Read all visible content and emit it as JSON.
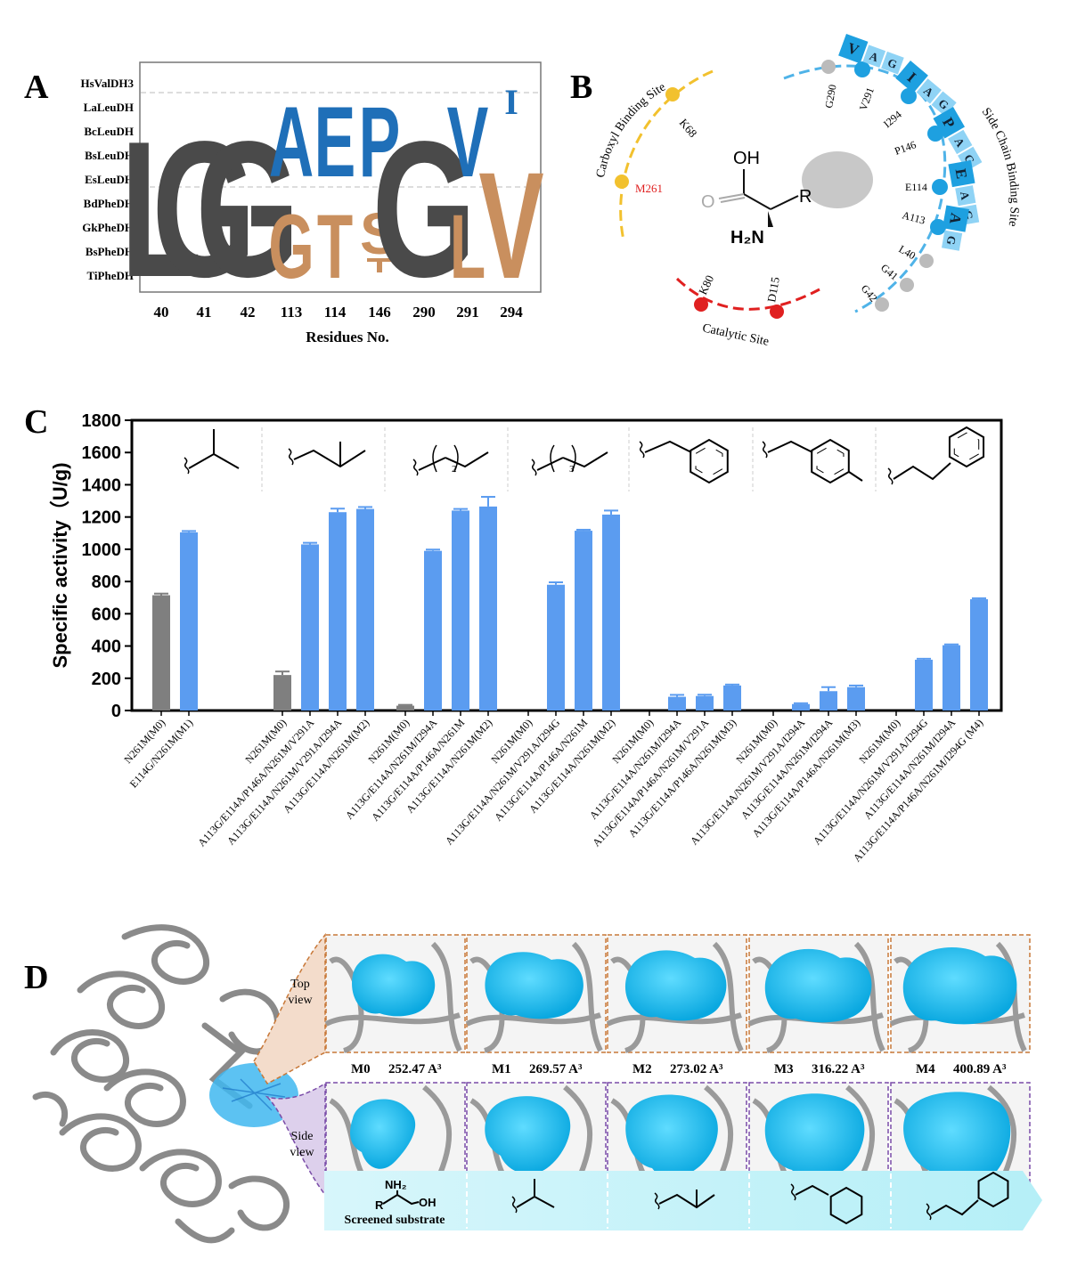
{
  "panel_a": {
    "label": "A",
    "sequences": [
      "HsValDH3",
      "LaLeuDH",
      "BcLeuDH",
      "BsLeuDH",
      "EsLeuDH",
      "BdPheDH",
      "GkPheDH",
      "BsPheDH",
      "TiPheDH"
    ],
    "positions": [
      "40",
      "41",
      "42",
      "113",
      "114",
      "146",
      "290",
      "291",
      "294"
    ],
    "top_letters": [
      "L",
      "G",
      "G",
      "A",
      "E",
      "P",
      "G",
      "V",
      "I"
    ],
    "bottom_letters": [
      "",
      "",
      "",
      "G",
      "T",
      "S",
      "",
      "L",
      "V"
    ],
    "xlabel": "Residues No.",
    "colors": {
      "gray": "#4a4a4a",
      "blue": "#1f6fb8",
      "tan": "#c98f5e"
    }
  },
  "panel_b": {
    "label": "B",
    "carboxyl_site": "Carboxyl Binding Site",
    "catalytic_site": "Catalytic Site",
    "side_chain_site": "Side Chain Binding Site",
    "residues": {
      "k68": "K68",
      "m261": "M261",
      "k80": "K80",
      "d115": "D115",
      "g290": "G290",
      "v291": "V291",
      "i294": "I294",
      "p146": "P146",
      "e114": "E114",
      "a113": "A113",
      "l40": "L40",
      "g41": "G41",
      "g42": "G42"
    },
    "mut_pairs": [
      [
        "V",
        "A",
        "G"
      ],
      [
        "I",
        "A",
        "G"
      ],
      [
        "P",
        "A",
        "G"
      ],
      [
        "E",
        "A",
        "G"
      ],
      [
        "A",
        "G"
      ]
    ],
    "molecule": {
      "oh": "OH",
      "o": "O",
      "r": "R",
      "nh2": "H₂N"
    }
  },
  "panel_c": {
    "label": "C",
    "chart_data": {
      "type": "bar",
      "ylabel": "Specific activity（U/g)",
      "ylim": [
        0,
        1800
      ],
      "yticks": [
        0,
        200,
        400,
        600,
        800,
        1000,
        1200,
        1400,
        1600,
        1800
      ],
      "groups": [
        {
          "substrate": "isopropyl",
          "bars": [
            {
              "label": "N261M(M0)",
              "value": 715,
              "err": 10,
              "color": "gray"
            },
            {
              "label": "E114G/N261M(M1)",
              "value": 1105,
              "err": 8,
              "color": "blue"
            }
          ]
        },
        {
          "substrate": "isobutyl",
          "bars": [
            {
              "label": "N261M(M0)",
              "value": 220,
              "err": 22,
              "color": "gray"
            },
            {
              "label": "A113G/E114A/P146A/N261M/V291A",
              "value": 1030,
              "err": 10,
              "color": "blue"
            },
            {
              "label": "A113G/E114A/N261M/V291A/I294A",
              "value": 1230,
              "err": 22,
              "color": "blue"
            },
            {
              "label": "A113G/E114A/N261M(M2)",
              "value": 1250,
              "err": 12,
              "color": "blue"
            }
          ]
        },
        {
          "substrate": "butyl",
          "bars": [
            {
              "label": "N261M(M0)",
              "value": 30,
              "err": 5,
              "color": "gray"
            },
            {
              "label": "A113G/E114A/N261M/I294A",
              "value": 990,
              "err": 8,
              "color": "blue"
            },
            {
              "label": "A113G/E114A/P146A/N261M",
              "value": 1240,
              "err": 10,
              "color": "blue"
            },
            {
              "label": "A113G/E114A/N261M(M2)",
              "value": 1265,
              "err": 60,
              "color": "blue"
            }
          ]
        },
        {
          "substrate": "pentyl",
          "bars": [
            {
              "label": "N261M(M0)",
              "value": 0,
              "err": 0,
              "color": "gray"
            },
            {
              "label": "A113G/E114A/N261M/V291A/I294G",
              "value": 780,
              "err": 15,
              "color": "blue"
            },
            {
              "label": "A113G/E114A/P146A/N261M",
              "value": 1115,
              "err": 6,
              "color": "blue"
            },
            {
              "label": "A113G/E114A/N261M(M2)",
              "value": 1215,
              "err": 25,
              "color": "blue"
            }
          ]
        },
        {
          "substrate": "benzyl",
          "bars": [
            {
              "label": "N261M(M0)",
              "value": 0,
              "err": 0,
              "color": "gray"
            },
            {
              "label": "A113G/E114A/N261M/I294A",
              "value": 85,
              "err": 12,
              "color": "blue"
            },
            {
              "label": "A113G/E114A/P146A/N261M/V291A",
              "value": 90,
              "err": 8,
              "color": "blue"
            },
            {
              "label": "A113G/E114A/P146A/N261M(M3)",
              "value": 155,
              "err": 6,
              "color": "blue"
            }
          ]
        },
        {
          "substrate": "4-methylbenzyl",
          "bars": [
            {
              "label": "N261M(M0)",
              "value": 0,
              "err": 0,
              "color": "gray"
            },
            {
              "label": "A113G/E114A/N261M/V291A/I294A",
              "value": 40,
              "err": 5,
              "color": "blue"
            },
            {
              "label": "A113G/E114A/N261M/I294A",
              "value": 120,
              "err": 25,
              "color": "blue"
            },
            {
              "label": "A113G/E114A/P146A/N261M(M3)",
              "value": 145,
              "err": 10,
              "color": "blue"
            }
          ]
        },
        {
          "substrate": "phenethyl",
          "bars": [
            {
              "label": "N261M(M0)",
              "value": 0,
              "err": 0,
              "color": "gray"
            },
            {
              "label": "A113G/E114A/N261M/V291A/I294G",
              "value": 315,
              "err": 6,
              "color": "blue"
            },
            {
              "label": "A113G/E114A/N261M/I294A",
              "value": 405,
              "err": 5,
              "color": "blue"
            },
            {
              "label": "A113G/E114A/P146A/N261M/I294G (M4)",
              "value": 690,
              "err": 6,
              "color": "blue"
            }
          ]
        }
      ],
      "colors": {
        "gray": "#7f7f7f",
        "blue": "#5b9cf0"
      },
      "subscripts": [
        "2",
        "3"
      ]
    }
  },
  "panel_d": {
    "label": "D",
    "top_view": "Top view",
    "side_view": "Side view",
    "top_view_lines": [
      "Top",
      "view"
    ],
    "side_view_lines": [
      "Side",
      "view"
    ],
    "mutants": [
      {
        "name": "M0",
        "volume": "252.47 A³"
      },
      {
        "name": "M1",
        "volume": "269.57 A³"
      },
      {
        "name": "M2",
        "volume": "273.02 A³"
      },
      {
        "name": "M3",
        "volume": "316.22 A³"
      },
      {
        "name": "M4",
        "volume": "400.89 A³"
      }
    ],
    "screened_substrate": "Screened substrate",
    "substrate_labels": {
      "nh2": "NH₂",
      "oh": "OH",
      "r": "R"
    }
  }
}
